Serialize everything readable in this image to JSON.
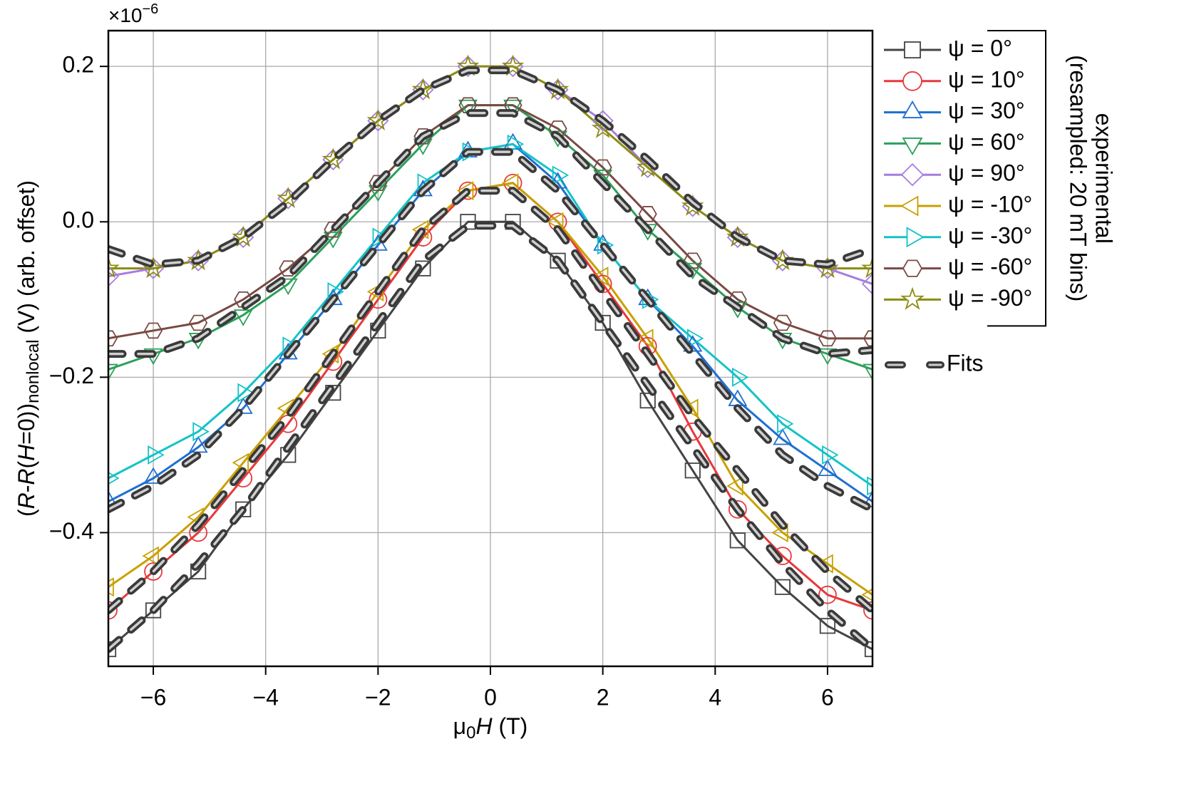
{
  "chart_data": {
    "type": "line",
    "multiplier": {
      "base": "×10",
      "exponent": "−6"
    },
    "xlabel": [
      {
        "text": "μ",
        "style": "normal"
      },
      {
        "text": "0",
        "style": "sub"
      },
      {
        "text": "H",
        "style": "italic"
      },
      {
        "text": " (T)",
        "style": "normal"
      }
    ],
    "ylabel": [
      {
        "text": "(",
        "style": "normal"
      },
      {
        "text": "R",
        "style": "italic"
      },
      {
        "text": "-",
        "style": "normal"
      },
      {
        "text": "R",
        "style": "italic"
      },
      {
        "text": "(",
        "style": "normal"
      },
      {
        "text": "H",
        "style": "italic"
      },
      {
        "text": "=0))",
        "style": "normal"
      },
      {
        "text": "nonlocal",
        "style": "sub"
      },
      {
        "text": " (V) (arb. offset)",
        "style": "normal"
      }
    ],
    "xlim": [
      -6.8,
      6.8
    ],
    "ylim": [
      -0.572,
      0.246
    ],
    "xticks": [
      {
        "value": -6,
        "label": "−6"
      },
      {
        "value": -4,
        "label": "−4"
      },
      {
        "value": -2,
        "label": "−2"
      },
      0,
      2,
      4,
      6
    ],
    "yticks": [
      {
        "value": -0.4,
        "label": "−0.4"
      },
      {
        "value": -0.2,
        "label": "−0.2"
      },
      {
        "value": 0,
        "label": "0.0"
      },
      0.2
    ],
    "grid": true,
    "legend": "right",
    "legend_group_label": [
      "experimental",
      "(resampled: 20 mT bins)"
    ],
    "x": [
      -6.8,
      -6.0,
      -5.2,
      -4.4,
      -3.6,
      -2.8,
      -2.0,
      -1.2,
      -0.4,
      0.4,
      1.2,
      2.0,
      2.8,
      3.6,
      4.4,
      5.2,
      6.0,
      6.8
    ],
    "series": [
      {
        "name": "ψ = 0°",
        "color": "#444444",
        "marker": "square",
        "values": [
          -0.55,
          -0.5,
          -0.45,
          -0.37,
          -0.3,
          -0.22,
          -0.14,
          -0.06,
          0.0,
          0.0,
          -0.05,
          -0.13,
          -0.23,
          -0.32,
          -0.41,
          -0.47,
          -0.52,
          -0.55
        ]
      },
      {
        "name": "ψ = 10°",
        "color": "#e8383b",
        "marker": "circle",
        "values": [
          -0.5,
          -0.45,
          -0.4,
          -0.33,
          -0.26,
          -0.18,
          -0.1,
          -0.02,
          0.04,
          0.05,
          0.0,
          -0.08,
          -0.16,
          -0.27,
          -0.37,
          -0.43,
          -0.48,
          -0.5
        ]
      },
      {
        "name": "ψ = 30°",
        "color": "#1f6fd1",
        "marker": "triangle-up",
        "values": [
          -0.36,
          -0.33,
          -0.29,
          -0.24,
          -0.17,
          -0.1,
          -0.03,
          0.04,
          0.09,
          0.1,
          0.05,
          -0.03,
          -0.1,
          -0.16,
          -0.23,
          -0.28,
          -0.32,
          -0.36
        ]
      },
      {
        "name": "ψ = 60°",
        "color": "#2ca05a",
        "marker": "triangle-down",
        "values": [
          -0.19,
          -0.17,
          -0.15,
          -0.12,
          -0.08,
          -0.02,
          0.04,
          0.1,
          0.15,
          0.15,
          0.11,
          0.06,
          -0.01,
          -0.06,
          -0.11,
          -0.15,
          -0.17,
          -0.19
        ]
      },
      {
        "name": "ψ = 90°",
        "color": "#a67de0",
        "marker": "diamond",
        "values": [
          -0.07,
          -0.06,
          -0.05,
          -0.02,
          0.03,
          0.08,
          0.13,
          0.17,
          0.2,
          0.2,
          0.17,
          0.13,
          0.07,
          0.02,
          -0.02,
          -0.05,
          -0.06,
          -0.08
        ]
      },
      {
        "name": "ψ = -10°",
        "color": "#c9a000",
        "marker": "triangle-left",
        "values": [
          -0.47,
          -0.43,
          -0.38,
          -0.31,
          -0.24,
          -0.17,
          -0.09,
          -0.01,
          0.04,
          0.05,
          0.0,
          -0.07,
          -0.15,
          -0.24,
          -0.34,
          -0.4,
          -0.44,
          -0.48
        ]
      },
      {
        "name": "ψ = -30°",
        "color": "#14c3c8",
        "marker": "triangle-right",
        "values": [
          -0.33,
          -0.3,
          -0.27,
          -0.22,
          -0.16,
          -0.09,
          -0.02,
          0.05,
          0.09,
          0.1,
          0.06,
          -0.03,
          -0.1,
          -0.15,
          -0.2,
          -0.26,
          -0.3,
          -0.34
        ]
      },
      {
        "name": "ψ = -60°",
        "color": "#7a4a44",
        "marker": "hexagon",
        "values": [
          -0.15,
          -0.14,
          -0.13,
          -0.1,
          -0.06,
          -0.01,
          0.05,
          0.11,
          0.15,
          0.15,
          0.12,
          0.07,
          0.01,
          -0.05,
          -0.1,
          -0.13,
          -0.15,
          -0.15
        ]
      },
      {
        "name": "ψ = -90°",
        "color": "#8c8c10",
        "marker": "star",
        "values": [
          -0.06,
          -0.06,
          -0.05,
          -0.02,
          0.03,
          0.08,
          0.13,
          0.17,
          0.2,
          0.2,
          0.17,
          0.12,
          0.07,
          0.02,
          -0.02,
          -0.05,
          -0.06,
          -0.06
        ]
      }
    ],
    "fits": {
      "name": "Fits",
      "color": "#3a3a3a",
      "curves": [
        [
          -0.035,
          -0.055,
          -0.05,
          -0.02,
          0.025,
          0.08,
          0.13,
          0.17,
          0.195,
          0.195,
          0.17,
          0.13,
          0.08,
          0.025,
          -0.02,
          -0.05,
          -0.055,
          -0.035
        ],
        [
          -0.17,
          -0.17,
          -0.15,
          -0.11,
          -0.07,
          -0.01,
          0.05,
          0.11,
          0.14,
          0.14,
          0.11,
          0.05,
          -0.01,
          -0.07,
          -0.11,
          -0.15,
          -0.17,
          -0.165
        ],
        [
          -0.37,
          -0.34,
          -0.3,
          -0.24,
          -0.17,
          -0.1,
          -0.03,
          0.04,
          0.09,
          0.09,
          0.04,
          -0.03,
          -0.1,
          -0.17,
          -0.24,
          -0.3,
          -0.34,
          -0.37
        ],
        [
          -0.5,
          -0.45,
          -0.39,
          -0.32,
          -0.25,
          -0.17,
          -0.09,
          -0.01,
          0.04,
          0.04,
          -0.01,
          -0.09,
          -0.17,
          -0.25,
          -0.32,
          -0.39,
          -0.45,
          -0.5
        ],
        [
          -0.55,
          -0.5,
          -0.44,
          -0.37,
          -0.29,
          -0.21,
          -0.13,
          -0.05,
          -0.005,
          -0.005,
          -0.05,
          -0.13,
          -0.21,
          -0.29,
          -0.37,
          -0.44,
          -0.5,
          -0.55
        ]
      ]
    }
  }
}
